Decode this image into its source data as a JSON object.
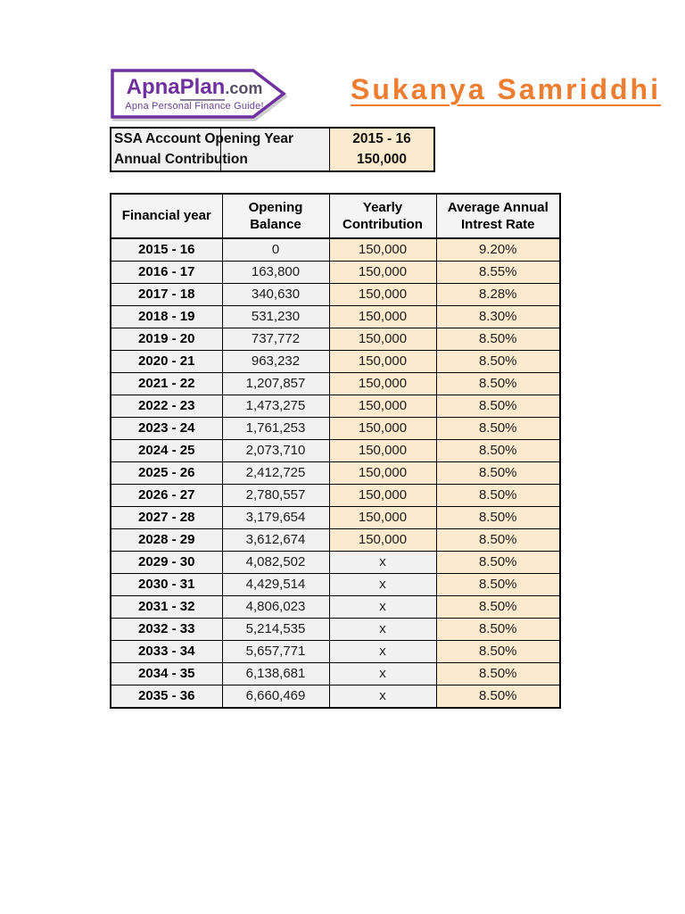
{
  "logo": {
    "brand_apna": "Apna",
    "brand_plan": "Plan",
    "brand_tld": ".com",
    "tagline": "Apna Personal Finance Guide!",
    "brand_color": "#7030A0"
  },
  "header": {
    "title": "Sukanya Samriddhi",
    "title_color": "#ED7D31"
  },
  "summary": {
    "rows": [
      {
        "label": "SSA Account Opening Year",
        "value": "2015 - 16"
      },
      {
        "label": "Annual Contribution",
        "value": "150,000"
      }
    ]
  },
  "table": {
    "headers": [
      "Financial year",
      "Opening Balance",
      "Yearly Contribution",
      "Average Annual Intrest Rate"
    ],
    "no_contribution_marker": "x",
    "rows": [
      [
        "2015 - 16",
        "0",
        "150,000",
        "9.20%"
      ],
      [
        "2016 - 17",
        "163,800",
        "150,000",
        "8.55%"
      ],
      [
        "2017 - 18",
        "340,630",
        "150,000",
        "8.28%"
      ],
      [
        "2018 - 19",
        "531,230",
        "150,000",
        "8.30%"
      ],
      [
        "2019 - 20",
        "737,772",
        "150,000",
        "8.50%"
      ],
      [
        "2020 - 21",
        "963,232",
        "150,000",
        "8.50%"
      ],
      [
        "2021 - 22",
        "1,207,857",
        "150,000",
        "8.50%"
      ],
      [
        "2022 - 23",
        "1,473,275",
        "150,000",
        "8.50%"
      ],
      [
        "2023 - 24",
        "1,761,253",
        "150,000",
        "8.50%"
      ],
      [
        "2024 - 25",
        "2,073,710",
        "150,000",
        "8.50%"
      ],
      [
        "2025 - 26",
        "2,412,725",
        "150,000",
        "8.50%"
      ],
      [
        "2026 - 27",
        "2,780,557",
        "150,000",
        "8.50%"
      ],
      [
        "2027 - 28",
        "3,179,654",
        "150,000",
        "8.50%"
      ],
      [
        "2028 - 29",
        "3,612,674",
        "150,000",
        "8.50%"
      ],
      [
        "2029 - 30",
        "4,082,502",
        "x",
        "8.50%"
      ],
      [
        "2030 - 31",
        "4,429,514",
        "x",
        "8.50%"
      ],
      [
        "2031 - 32",
        "4,806,023",
        "x",
        "8.50%"
      ],
      [
        "2032 - 33",
        "5,214,535",
        "x",
        "8.50%"
      ],
      [
        "2033 - 34",
        "5,657,771",
        "x",
        "8.50%"
      ],
      [
        "2034 - 35",
        "6,138,681",
        "x",
        "8.50%"
      ],
      [
        "2035 - 36",
        "6,660,469",
        "x",
        "8.50%"
      ]
    ]
  },
  "colors": {
    "cream_cell": "#FBEACD",
    "gray_cell": "#F1F1F1",
    "purple_brand": "#7030A0",
    "orange_title": "#ED7D31",
    "border": "#000000"
  }
}
